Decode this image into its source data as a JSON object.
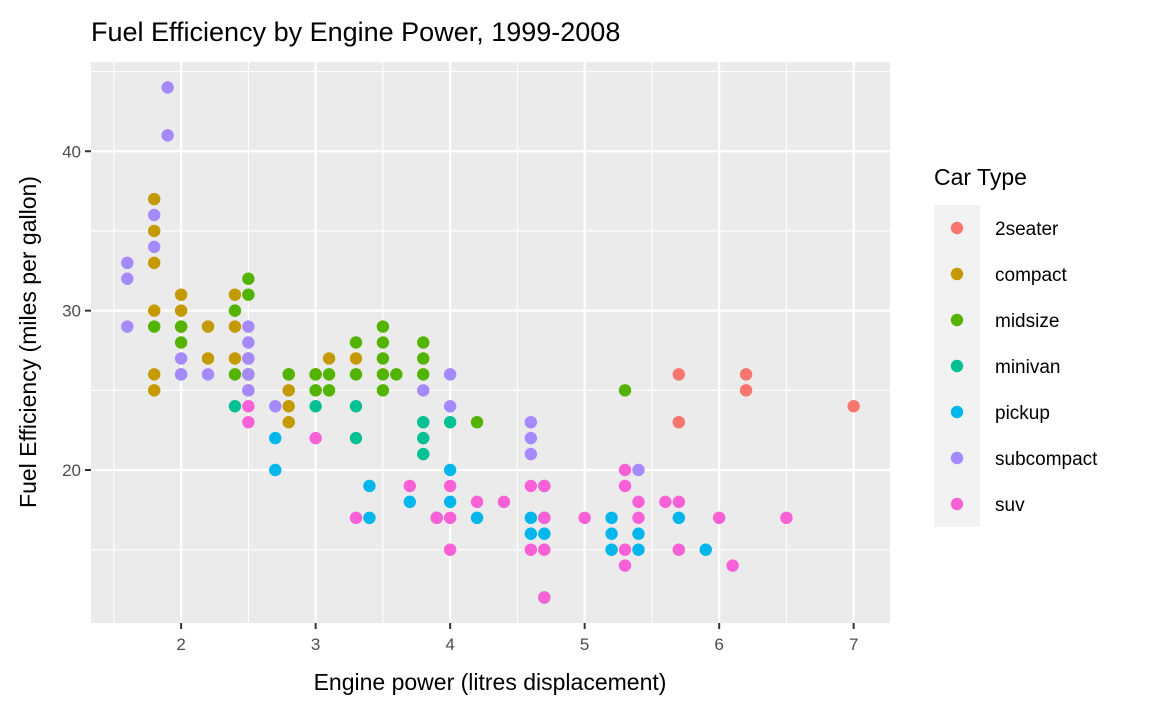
{
  "chart_data": {
    "type": "scatter",
    "title": "Fuel Efficiency by Engine Power, 1999-2008",
    "xlabel": "Engine power (litres displacement)",
    "ylabel": "Fuel Efficiency (miles per gallon)",
    "xlim": [
      1.33,
      7.27
    ],
    "ylim": [
      10.4,
      45.6
    ],
    "x_ticks": [
      2,
      3,
      4,
      5,
      6,
      7
    ],
    "y_ticks": [
      20,
      30,
      40
    ],
    "grid": true,
    "legend": {
      "title": "Car Type",
      "position": "right"
    },
    "series": [
      {
        "name": "2seater",
        "color": "#F8766D",
        "points": [
          [
            5.7,
            26
          ],
          [
            5.7,
            23
          ],
          [
            6.2,
            26
          ],
          [
            6.2,
            25
          ],
          [
            7.0,
            24
          ]
        ]
      },
      {
        "name": "compact",
        "color": "#C49A00",
        "points": [
          [
            1.8,
            37
          ],
          [
            1.8,
            35
          ],
          [
            1.8,
            33
          ],
          [
            1.8,
            30
          ],
          [
            1.8,
            26
          ],
          [
            1.8,
            25
          ],
          [
            2.0,
            31
          ],
          [
            2.0,
            30
          ],
          [
            2.0,
            29
          ],
          [
            2.2,
            29
          ],
          [
            2.2,
            27
          ],
          [
            2.4,
            31
          ],
          [
            2.4,
            29
          ],
          [
            2.4,
            27
          ],
          [
            2.5,
            27
          ],
          [
            2.5,
            26
          ],
          [
            2.5,
            25
          ],
          [
            2.8,
            26
          ],
          [
            2.8,
            25
          ],
          [
            2.8,
            24
          ],
          [
            2.8,
            23
          ],
          [
            3.0,
            26
          ],
          [
            3.1,
            27
          ],
          [
            3.3,
            27
          ]
        ]
      },
      {
        "name": "midsize",
        "color": "#53B400",
        "points": [
          [
            1.8,
            29
          ],
          [
            2.0,
            29
          ],
          [
            2.0,
            28
          ],
          [
            2.0,
            26
          ],
          [
            2.4,
            30
          ],
          [
            2.4,
            26
          ],
          [
            2.5,
            32
          ],
          [
            2.5,
            31
          ],
          [
            2.5,
            26
          ],
          [
            2.8,
            26
          ],
          [
            3.0,
            26
          ],
          [
            3.0,
            25
          ],
          [
            3.1,
            26
          ],
          [
            3.1,
            25
          ],
          [
            3.3,
            28
          ],
          [
            3.3,
            26
          ],
          [
            3.5,
            29
          ],
          [
            3.5,
            28
          ],
          [
            3.5,
            27
          ],
          [
            3.5,
            26
          ],
          [
            3.5,
            25
          ],
          [
            3.6,
            26
          ],
          [
            3.8,
            28
          ],
          [
            3.8,
            27
          ],
          [
            3.8,
            26
          ],
          [
            4.2,
            23
          ],
          [
            5.3,
            25
          ]
        ]
      },
      {
        "name": "minivan",
        "color": "#00C094",
        "points": [
          [
            2.4,
            24
          ],
          [
            3.0,
            24
          ],
          [
            3.3,
            24
          ],
          [
            3.3,
            22
          ],
          [
            3.8,
            23
          ],
          [
            3.8,
            22
          ],
          [
            3.8,
            21
          ],
          [
            4.0,
            23
          ]
        ]
      },
      {
        "name": "pickup",
        "color": "#00B6EB",
        "points": [
          [
            2.7,
            22
          ],
          [
            2.7,
            20
          ],
          [
            3.4,
            19
          ],
          [
            3.4,
            17
          ],
          [
            3.7,
            18
          ],
          [
            3.9,
            17
          ],
          [
            4.0,
            20
          ],
          [
            4.0,
            18
          ],
          [
            4.2,
            17
          ],
          [
            4.6,
            17
          ],
          [
            4.6,
            16
          ],
          [
            4.7,
            19
          ],
          [
            4.7,
            17
          ],
          [
            4.7,
            16
          ],
          [
            4.7,
            12
          ],
          [
            5.2,
            17
          ],
          [
            5.2,
            16
          ],
          [
            5.2,
            15
          ],
          [
            5.4,
            16
          ],
          [
            5.4,
            15
          ],
          [
            5.7,
            17
          ],
          [
            5.9,
            15
          ]
        ]
      },
      {
        "name": "subcompact",
        "color": "#A58AFF",
        "points": [
          [
            1.6,
            33
          ],
          [
            1.6,
            32
          ],
          [
            1.6,
            29
          ],
          [
            1.8,
            36
          ],
          [
            1.8,
            34
          ],
          [
            1.9,
            44
          ],
          [
            1.9,
            41
          ],
          [
            2.0,
            27
          ],
          [
            2.0,
            26
          ],
          [
            2.2,
            26
          ],
          [
            2.5,
            29
          ],
          [
            2.5,
            28
          ],
          [
            2.5,
            27
          ],
          [
            2.5,
            26
          ],
          [
            2.5,
            25
          ],
          [
            2.7,
            24
          ],
          [
            3.8,
            25
          ],
          [
            4.0,
            26
          ],
          [
            4.0,
            24
          ],
          [
            4.6,
            23
          ],
          [
            4.6,
            22
          ],
          [
            4.6,
            21
          ],
          [
            5.4,
            20
          ]
        ]
      },
      {
        "name": "suv",
        "color": "#FB61D7",
        "points": [
          [
            2.5,
            24
          ],
          [
            2.5,
            23
          ],
          [
            3.0,
            22
          ],
          [
            3.3,
            17
          ],
          [
            3.7,
            19
          ],
          [
            3.9,
            17
          ],
          [
            4.0,
            19
          ],
          [
            4.0,
            17
          ],
          [
            4.0,
            15
          ],
          [
            4.2,
            18
          ],
          [
            4.4,
            18
          ],
          [
            4.6,
            19
          ],
          [
            4.6,
            15
          ],
          [
            4.7,
            19
          ],
          [
            4.7,
            17
          ],
          [
            4.7,
            15
          ],
          [
            4.7,
            12
          ],
          [
            5.0,
            17
          ],
          [
            5.3,
            20
          ],
          [
            5.3,
            19
          ],
          [
            5.3,
            15
          ],
          [
            5.3,
            14
          ],
          [
            5.4,
            18
          ],
          [
            5.4,
            17
          ],
          [
            5.6,
            18
          ],
          [
            5.7,
            18
          ],
          [
            5.7,
            15
          ],
          [
            6.0,
            17
          ],
          [
            6.1,
            14
          ],
          [
            6.5,
            17
          ]
        ]
      }
    ]
  }
}
